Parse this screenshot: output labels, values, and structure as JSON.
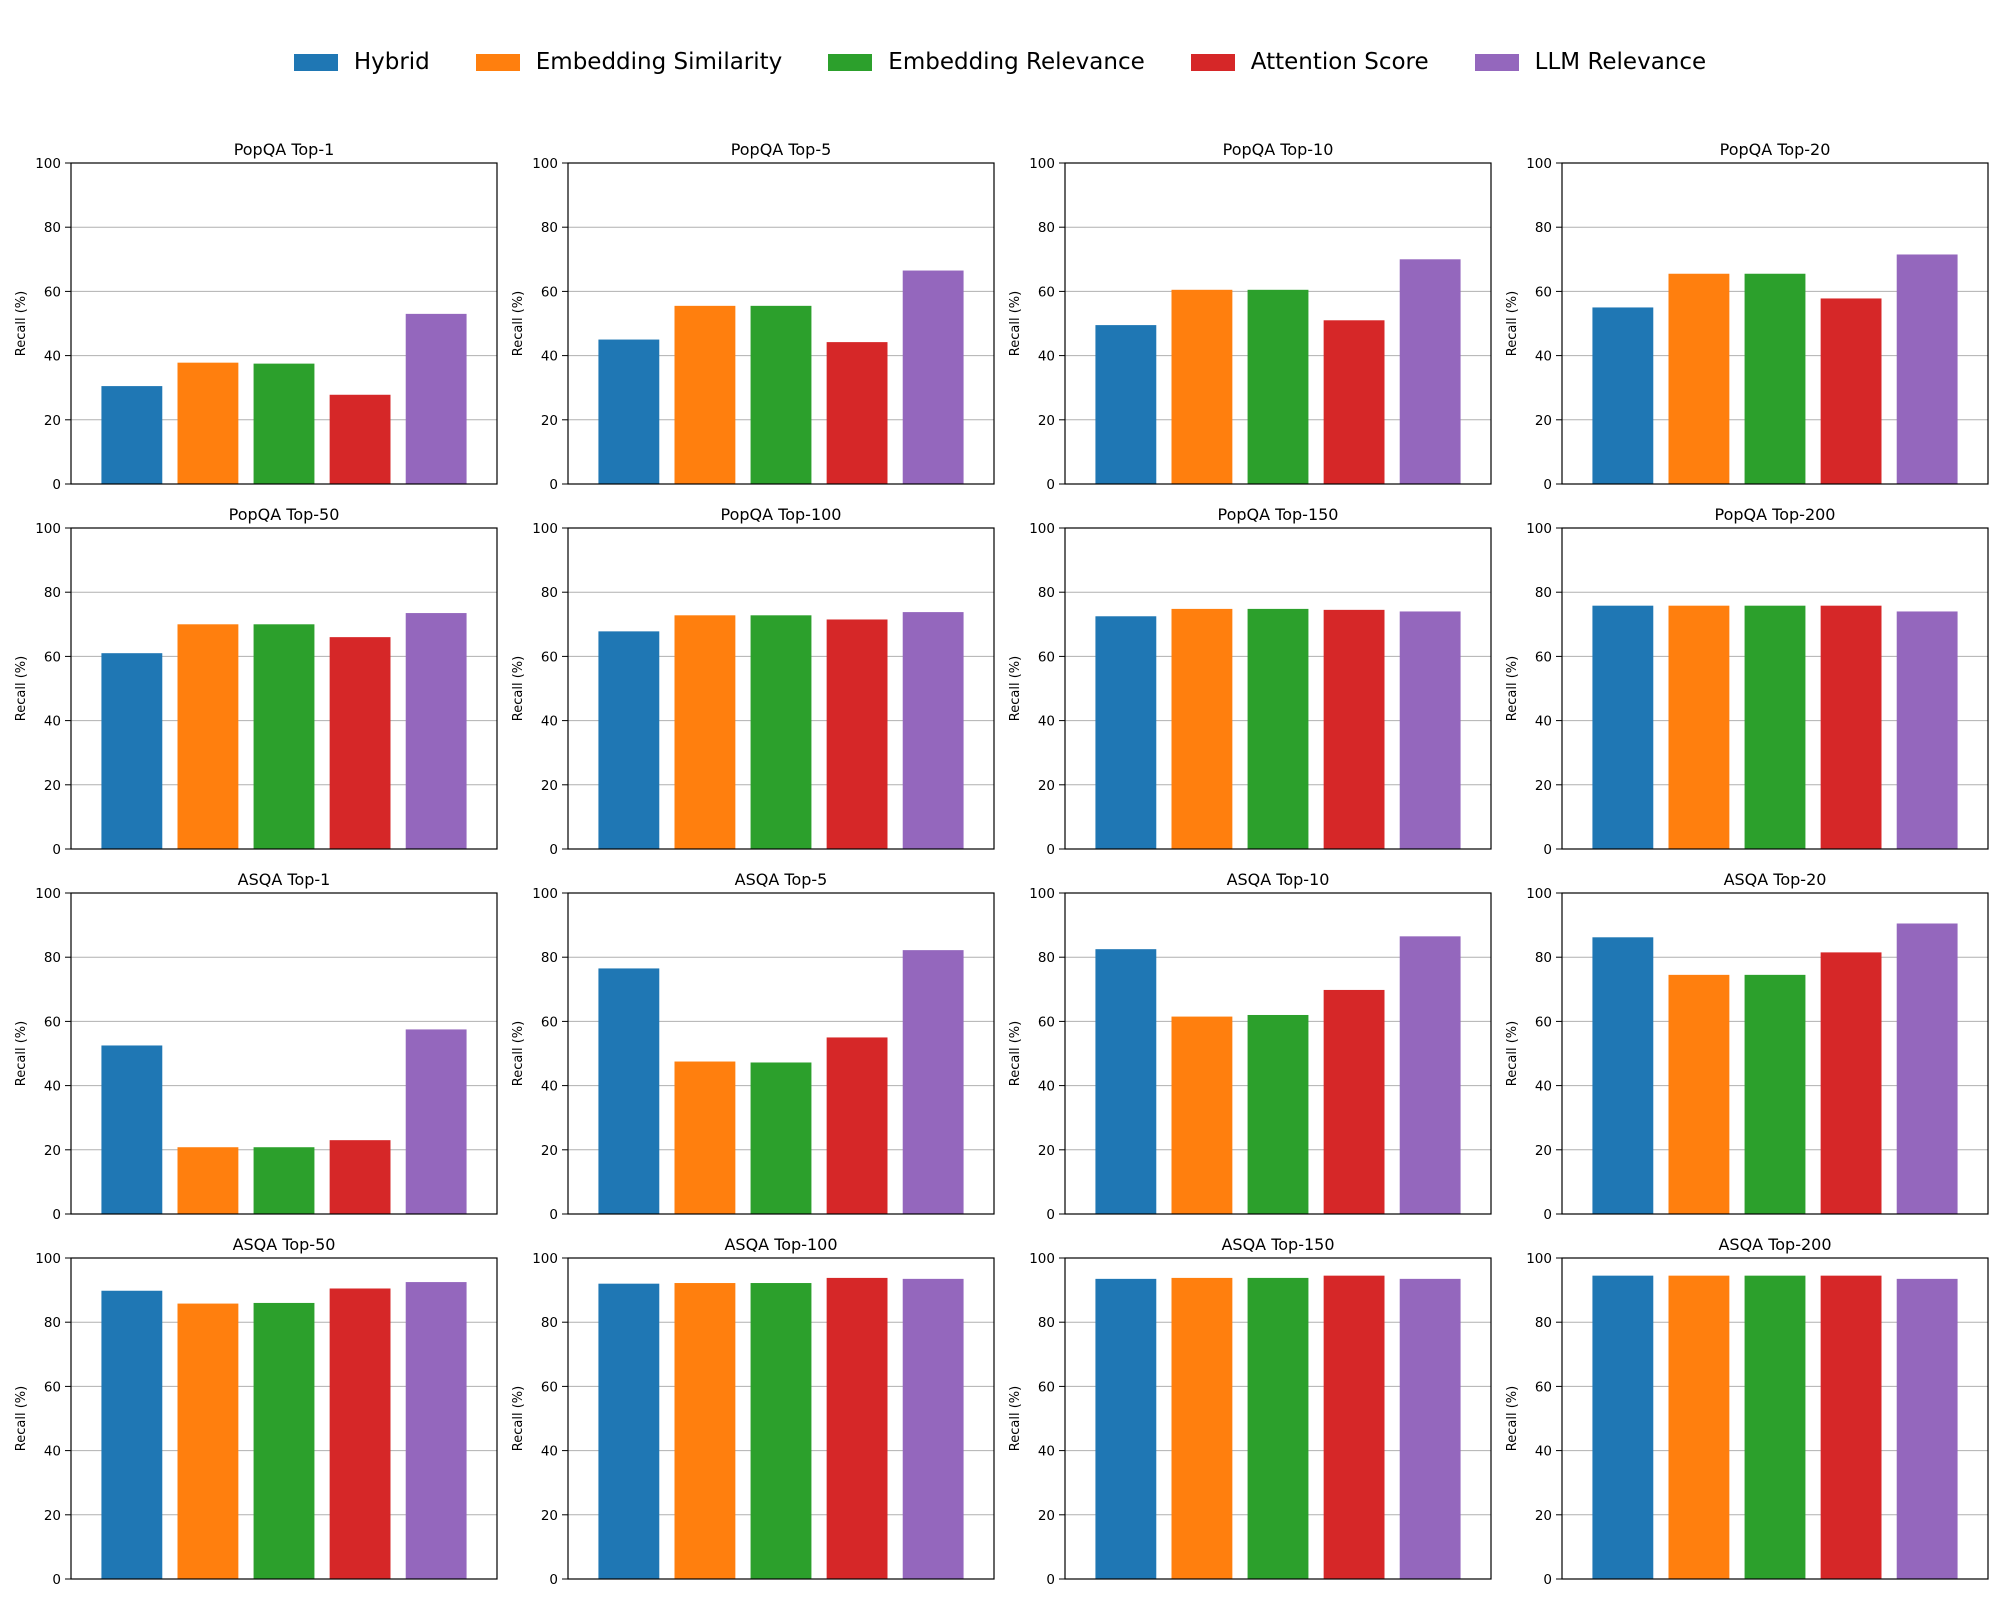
{
  "legend": {
    "items": [
      {
        "label": "Hybrid",
        "color": "#1f77b4"
      },
      {
        "label": "Embedding Similarity",
        "color": "#ff7f0e"
      },
      {
        "label": "Embedding Relevance",
        "color": "#2ca02c"
      },
      {
        "label": "Attention Score",
        "color": "#d62728"
      },
      {
        "label": "LLM Relevance",
        "color": "#9467bd"
      }
    ]
  },
  "chart_data": [
    {
      "type": "bar",
      "title": "PopQA Top-1",
      "ylabel": "Recall (%)",
      "ylim": [
        0,
        100
      ],
      "yticks": [
        "0",
        "20",
        "40",
        "60",
        "80",
        "100"
      ],
      "categories": [
        "Hybrid",
        "Embedding Similarity",
        "Embedding Relevance",
        "Attention Score",
        "LLM Relevance"
      ],
      "values": [
        30.5,
        37.8,
        37.5,
        27.8,
        53.0
      ]
    },
    {
      "type": "bar",
      "title": "PopQA Top-5",
      "ylabel": "Recall (%)",
      "ylim": [
        0,
        100
      ],
      "yticks": [
        "0",
        "20",
        "40",
        "60",
        "80",
        "100"
      ],
      "categories": [
        "Hybrid",
        "Embedding Similarity",
        "Embedding Relevance",
        "Attention Score",
        "LLM Relevance"
      ],
      "values": [
        45.0,
        55.5,
        55.5,
        44.2,
        66.5
      ]
    },
    {
      "type": "bar",
      "title": "PopQA Top-10",
      "ylabel": "Recall (%)",
      "ylim": [
        0,
        100
      ],
      "yticks": [
        "0",
        "20",
        "40",
        "60",
        "80",
        "100"
      ],
      "categories": [
        "Hybrid",
        "Embedding Similarity",
        "Embedding Relevance",
        "Attention Score",
        "LLM Relevance"
      ],
      "values": [
        49.5,
        60.5,
        60.5,
        51.0,
        70.0
      ]
    },
    {
      "type": "bar",
      "title": "PopQA Top-20",
      "ylabel": "Recall (%)",
      "ylim": [
        0,
        100
      ],
      "yticks": [
        "0",
        "20",
        "40",
        "60",
        "80",
        "100"
      ],
      "categories": [
        "Hybrid",
        "Embedding Similarity",
        "Embedding Relevance",
        "Attention Score",
        "LLM Relevance"
      ],
      "values": [
        55.0,
        65.5,
        65.5,
        57.8,
        71.5
      ]
    },
    {
      "type": "bar",
      "title": "PopQA Top-50",
      "ylabel": "Recall (%)",
      "ylim": [
        0,
        100
      ],
      "yticks": [
        "0",
        "20",
        "40",
        "60",
        "80",
        "100"
      ],
      "categories": [
        "Hybrid",
        "Embedding Similarity",
        "Embedding Relevance",
        "Attention Score",
        "LLM Relevance"
      ],
      "values": [
        61.0,
        70.0,
        70.0,
        66.0,
        73.5
      ]
    },
    {
      "type": "bar",
      "title": "PopQA Top-100",
      "ylabel": "Recall (%)",
      "ylim": [
        0,
        100
      ],
      "yticks": [
        "0",
        "20",
        "40",
        "60",
        "80",
        "100"
      ],
      "categories": [
        "Hybrid",
        "Embedding Similarity",
        "Embedding Relevance",
        "Attention Score",
        "LLM Relevance"
      ],
      "values": [
        67.8,
        72.8,
        72.8,
        71.5,
        73.8
      ]
    },
    {
      "type": "bar",
      "title": "PopQA Top-150",
      "ylabel": "Recall (%)",
      "ylim": [
        0,
        100
      ],
      "yticks": [
        "0",
        "20",
        "40",
        "60",
        "80",
        "100"
      ],
      "categories": [
        "Hybrid",
        "Embedding Similarity",
        "Embedding Relevance",
        "Attention Score",
        "LLM Relevance"
      ],
      "values": [
        72.5,
        74.8,
        74.8,
        74.5,
        74.0
      ]
    },
    {
      "type": "bar",
      "title": "PopQA Top-200",
      "ylabel": "Recall (%)",
      "ylim": [
        0,
        100
      ],
      "yticks": [
        "0",
        "20",
        "40",
        "60",
        "80",
        "100"
      ],
      "categories": [
        "Hybrid",
        "Embedding Similarity",
        "Embedding Relevance",
        "Attention Score",
        "LLM Relevance"
      ],
      "values": [
        75.8,
        75.8,
        75.8,
        75.8,
        74.0
      ]
    },
    {
      "type": "bar",
      "title": "ASQA Top-1",
      "ylabel": "Recall (%)",
      "ylim": [
        0,
        100
      ],
      "yticks": [
        "0",
        "20",
        "40",
        "60",
        "80",
        "100"
      ],
      "categories": [
        "Hybrid",
        "Embedding Similarity",
        "Embedding Relevance",
        "Attention Score",
        "LLM Relevance"
      ],
      "values": [
        52.5,
        20.8,
        20.8,
        23.0,
        57.5
      ]
    },
    {
      "type": "bar",
      "title": "ASQA Top-5",
      "ylabel": "Recall (%)",
      "ylim": [
        0,
        100
      ],
      "yticks": [
        "0",
        "20",
        "40",
        "60",
        "80",
        "100"
      ],
      "categories": [
        "Hybrid",
        "Embedding Similarity",
        "Embedding Relevance",
        "Attention Score",
        "LLM Relevance"
      ],
      "values": [
        76.5,
        47.5,
        47.2,
        55.0,
        82.2
      ]
    },
    {
      "type": "bar",
      "title": "ASQA Top-10",
      "ylabel": "Recall (%)",
      "ylim": [
        0,
        100
      ],
      "yticks": [
        "0",
        "20",
        "40",
        "60",
        "80",
        "100"
      ],
      "categories": [
        "Hybrid",
        "Embedding Similarity",
        "Embedding Relevance",
        "Attention Score",
        "LLM Relevance"
      ],
      "values": [
        82.5,
        61.5,
        62.0,
        69.8,
        86.5
      ]
    },
    {
      "type": "bar",
      "title": "ASQA Top-20",
      "ylabel": "Recall (%)",
      "ylim": [
        0,
        100
      ],
      "yticks": [
        "0",
        "20",
        "40",
        "60",
        "80",
        "100"
      ],
      "categories": [
        "Hybrid",
        "Embedding Similarity",
        "Embedding Relevance",
        "Attention Score",
        "LLM Relevance"
      ],
      "values": [
        86.2,
        74.5,
        74.5,
        81.5,
        90.5
      ]
    },
    {
      "type": "bar",
      "title": "ASQA Top-50",
      "ylabel": "Recall (%)",
      "ylim": [
        0,
        100
      ],
      "yticks": [
        "0",
        "20",
        "40",
        "60",
        "80",
        "100"
      ],
      "categories": [
        "Hybrid",
        "Embedding Similarity",
        "Embedding Relevance",
        "Attention Score",
        "LLM Relevance"
      ],
      "values": [
        89.8,
        85.8,
        86.0,
        90.5,
        92.5
      ]
    },
    {
      "type": "bar",
      "title": "ASQA Top-100",
      "ylabel": "Recall (%)",
      "ylim": [
        0,
        100
      ],
      "yticks": [
        "0",
        "20",
        "40",
        "60",
        "80",
        "100"
      ],
      "categories": [
        "Hybrid",
        "Embedding Similarity",
        "Embedding Relevance",
        "Attention Score",
        "LLM Relevance"
      ],
      "values": [
        92.0,
        92.2,
        92.2,
        93.8,
        93.5
      ]
    },
    {
      "type": "bar",
      "title": "ASQA Top-150",
      "ylabel": "Recall (%)",
      "ylim": [
        0,
        100
      ],
      "yticks": [
        "0",
        "20",
        "40",
        "60",
        "80",
        "100"
      ],
      "categories": [
        "Hybrid",
        "Embedding Similarity",
        "Embedding Relevance",
        "Attention Score",
        "LLM Relevance"
      ],
      "values": [
        93.5,
        93.8,
        93.8,
        94.5,
        93.5
      ]
    },
    {
      "type": "bar",
      "title": "ASQA Top-200",
      "ylabel": "Recall (%)",
      "ylim": [
        0,
        100
      ],
      "yticks": [
        "0",
        "20",
        "40",
        "60",
        "80",
        "100"
      ],
      "categories": [
        "Hybrid",
        "Embedding Similarity",
        "Embedding Relevance",
        "Attention Score",
        "LLM Relevance"
      ],
      "values": [
        94.5,
        94.5,
        94.5,
        94.5,
        93.5
      ]
    }
  ]
}
